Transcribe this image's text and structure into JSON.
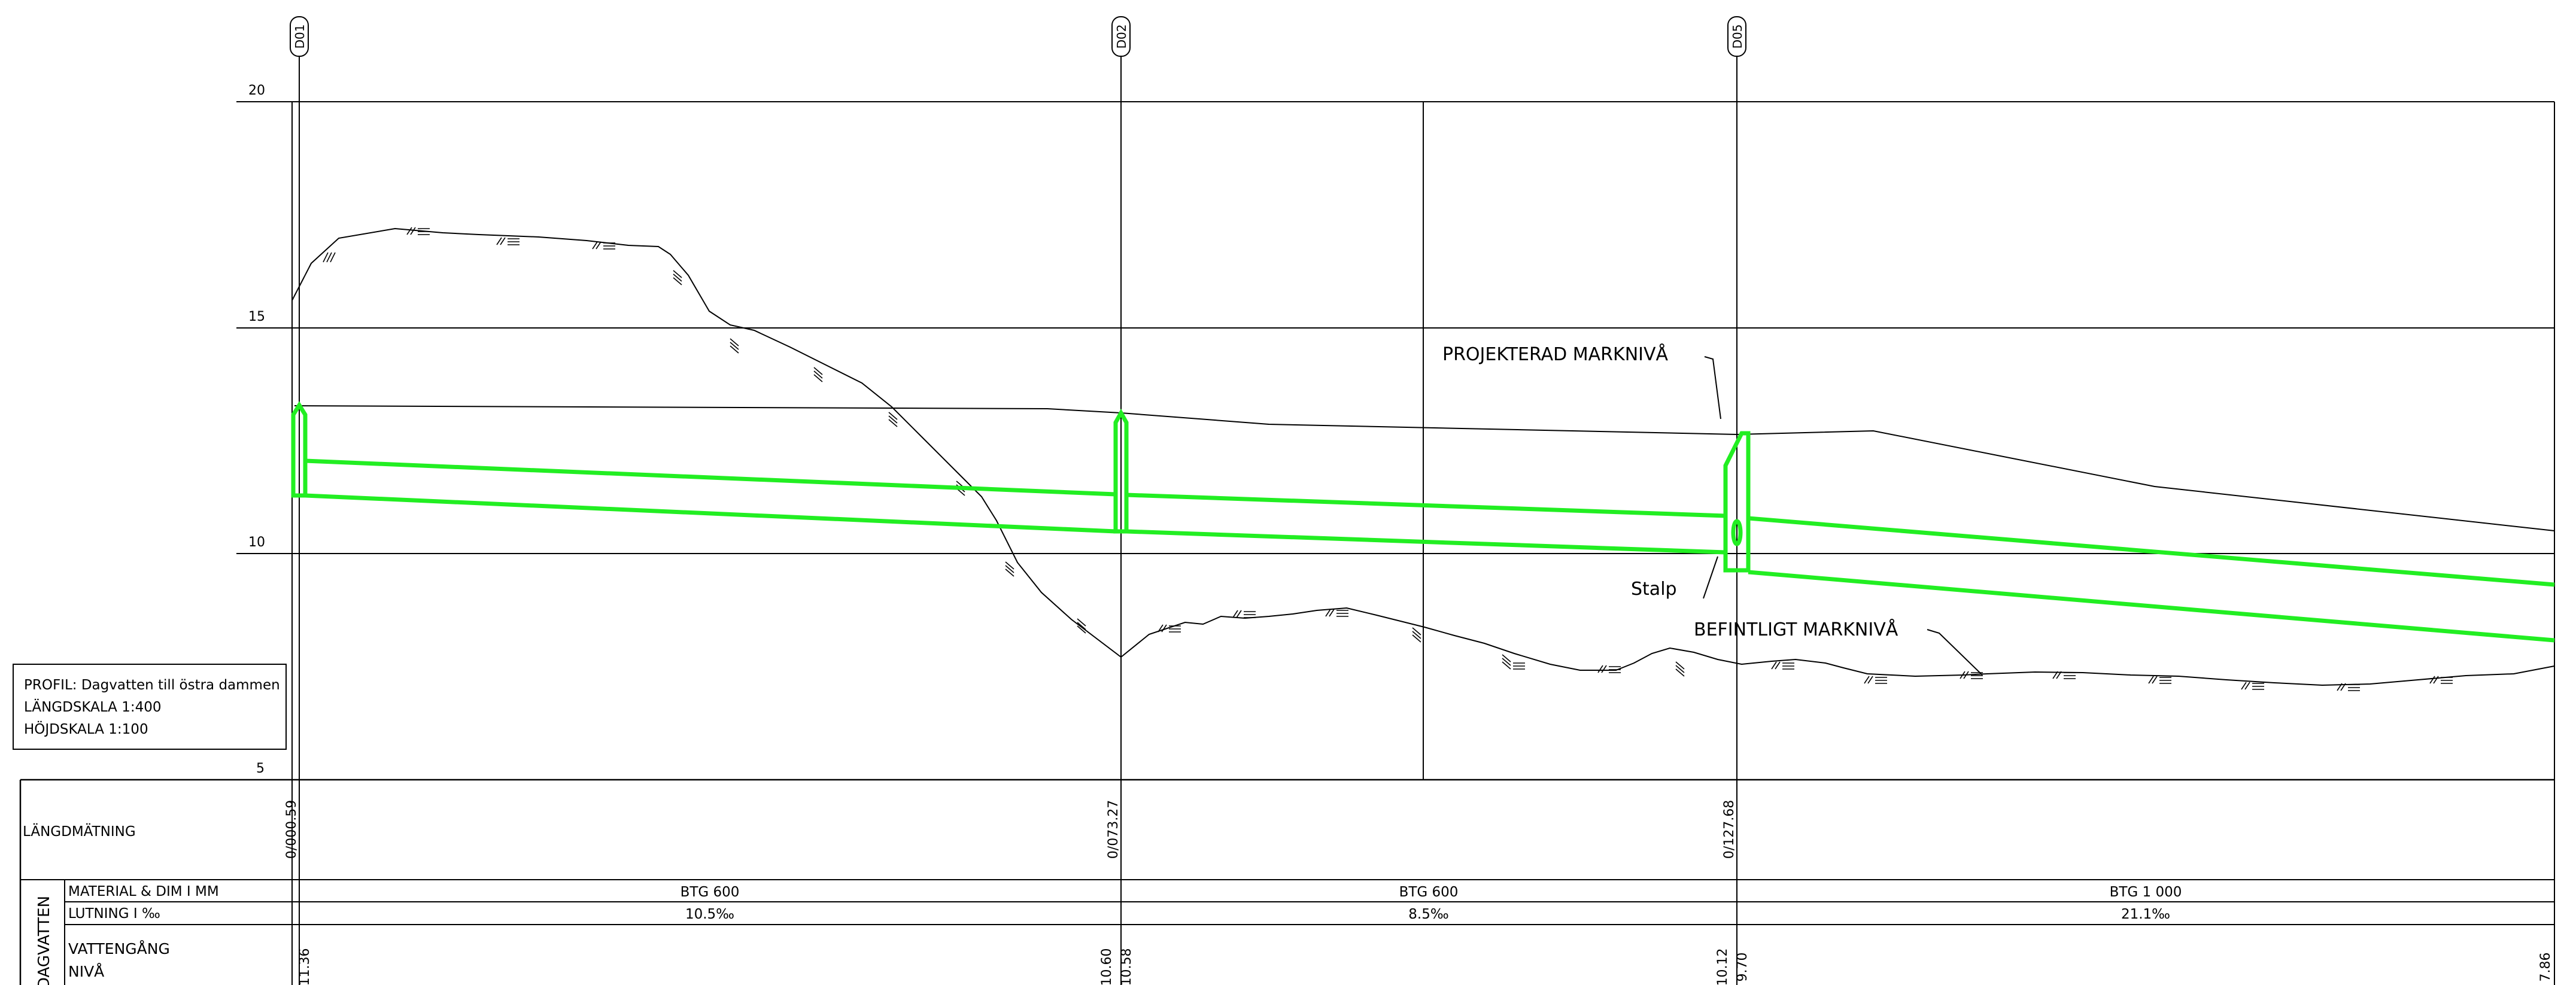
{
  "wells": [
    "D01",
    "D02",
    "D05"
  ],
  "y_levels": [
    "20",
    "15",
    "10",
    "5"
  ],
  "labels": {
    "projected_ground": "PROJEKTERAD MARKNIVÅ",
    "existing_ground": "BEFINTLIGT MARKNIVÅ",
    "drop": "Stalp"
  },
  "title_block": {
    "profile": "PROFIL: Dagvatten till östra dammen",
    "length_scale": "LÄNGDSKALA 1:400",
    "height_scale": "HÖJDSKALA 1:100"
  },
  "table": {
    "chainage_header": "LÄNGDMÄTNING",
    "group_header": "DAGVATTEN",
    "material_header": "MATERIAL & DIM I MM",
    "slope_header": "LUTNING I ‰",
    "invert_header_1": "VATTENGÅNG",
    "invert_header_2": "NIVÅ",
    "chainages": [
      "0/000.59",
      "0/073.27",
      "0/127.68"
    ],
    "materials": [
      "BTG 600",
      "BTG 600",
      "BTG 1 000"
    ],
    "slopes": [
      "10.5‰",
      "8.5‰",
      "21.1‰"
    ],
    "inverts": {
      "d01": "11.36",
      "d02_in": "10.60",
      "d02_out": "10.58",
      "d05_in": "10.12",
      "d05_out": "9.70",
      "end": "7.86"
    }
  },
  "colors": {
    "pipe": "#22ee22",
    "line": "#000000",
    "background": "#ffffff"
  }
}
